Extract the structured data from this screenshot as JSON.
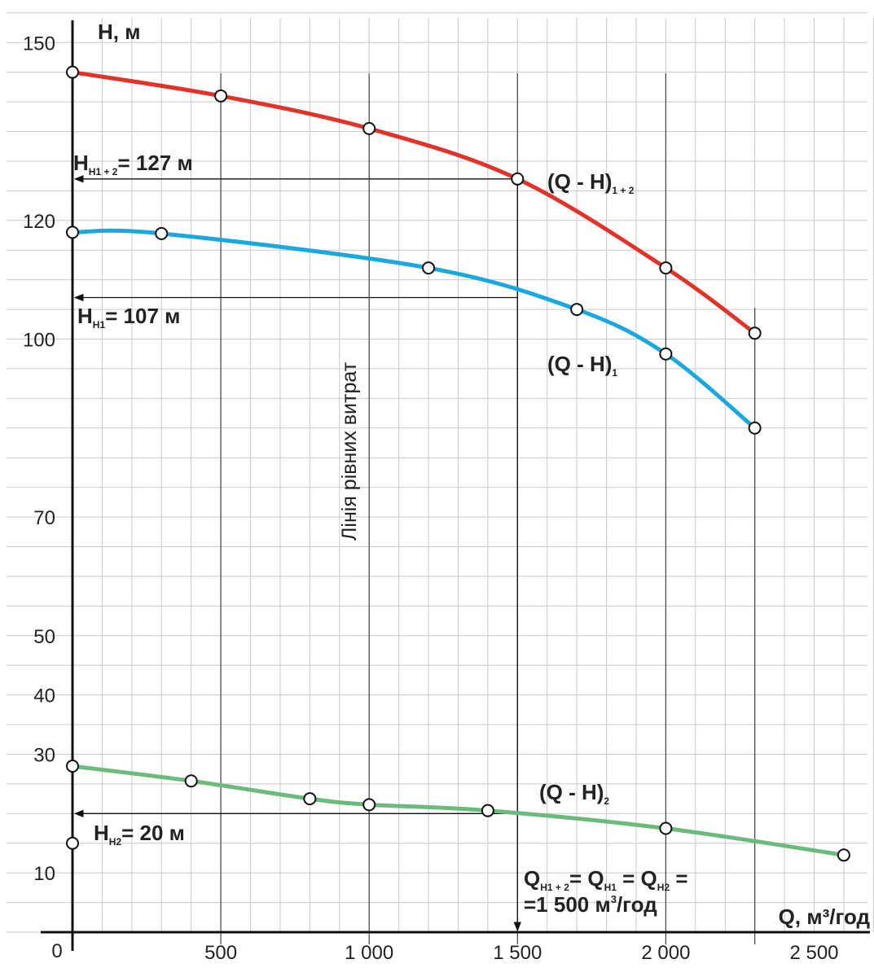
{
  "chart_data": {
    "type": "line",
    "ylabel": "H, м",
    "xlabel": "Q, м³/год",
    "xlim": [
      0,
      2700
    ],
    "ylim": [
      0,
      155
    ],
    "origin_label": "0",
    "x_ticks": [
      {
        "value": 500,
        "label": "500"
      },
      {
        "value": 1000,
        "label": "1 000"
      },
      {
        "value": 1500,
        "label": "1 500"
      },
      {
        "value": 2000,
        "label": "2 000"
      },
      {
        "value": 2500,
        "label": "2 500"
      }
    ],
    "y_ticks": [
      {
        "value": 10,
        "label": "10"
      },
      {
        "value": 30,
        "label": "30"
      },
      {
        "value": 40,
        "label": "40"
      },
      {
        "value": 50,
        "label": "50"
      },
      {
        "value": 70,
        "label": "70"
      },
      {
        "value": 100,
        "label": "100"
      },
      {
        "value": 120,
        "label": "120"
      },
      {
        "value": 150,
        "label": "150"
      }
    ],
    "series": [
      {
        "name": "(Q - H)1+2",
        "label_main": "(Q - H)",
        "label_sub": "1 + 2",
        "color": "#e2332a",
        "points": [
          [
            0,
            145
          ],
          [
            500,
            141
          ],
          [
            1000,
            135.5
          ],
          [
            1500,
            127
          ],
          [
            2000,
            112
          ],
          [
            2300,
            101
          ]
        ]
      },
      {
        "name": "(Q - H)1",
        "label_main": "(Q - H)",
        "label_sub": "1",
        "color": "#1ba8dd",
        "points": [
          [
            0,
            118
          ],
          [
            300,
            117.8
          ],
          [
            1200,
            112
          ],
          [
            1700,
            105
          ],
          [
            2000,
            97.5
          ],
          [
            2300,
            85
          ]
        ]
      },
      {
        "name": "(Q - H)2",
        "label_main": "(Q - H)",
        "label_sub": "2",
        "color": "#6cba7c",
        "points": [
          [
            0,
            28
          ],
          [
            400,
            25.5
          ],
          [
            800,
            22.5
          ],
          [
            1000,
            21.5
          ],
          [
            1400,
            20.5
          ],
          [
            2000,
            17.5
          ],
          [
            2600,
            13
          ]
        ]
      }
    ],
    "extra_points": [
      [
        0,
        15
      ]
    ],
    "annotations": {
      "h12": {
        "main": "H",
        "sub": "H1 + 2",
        "rest": "= 127 м",
        "value": 127
      },
      "h1": {
        "main": "H",
        "sub": "H1",
        "rest": "= 107 м",
        "value": 107
      },
      "h2": {
        "main": "H",
        "sub": "H2",
        "rest": "= 20 м",
        "value": 20
      },
      "equal_line": "Лінія рівних витрат",
      "q_line1_q1": "Q",
      "q_line1_s1": "H1 + 2",
      "q_line1_eq1": "= Q",
      "q_line1_s2": "H1",
      "q_line1_eq2": " = Q",
      "q_line1_s3": "H2",
      "q_line1_end": " =",
      "q_line2": "=1 500 м",
      "q_line2_sup": "3",
      "q_line2_end": "/год",
      "q_value": 1500
    }
  }
}
